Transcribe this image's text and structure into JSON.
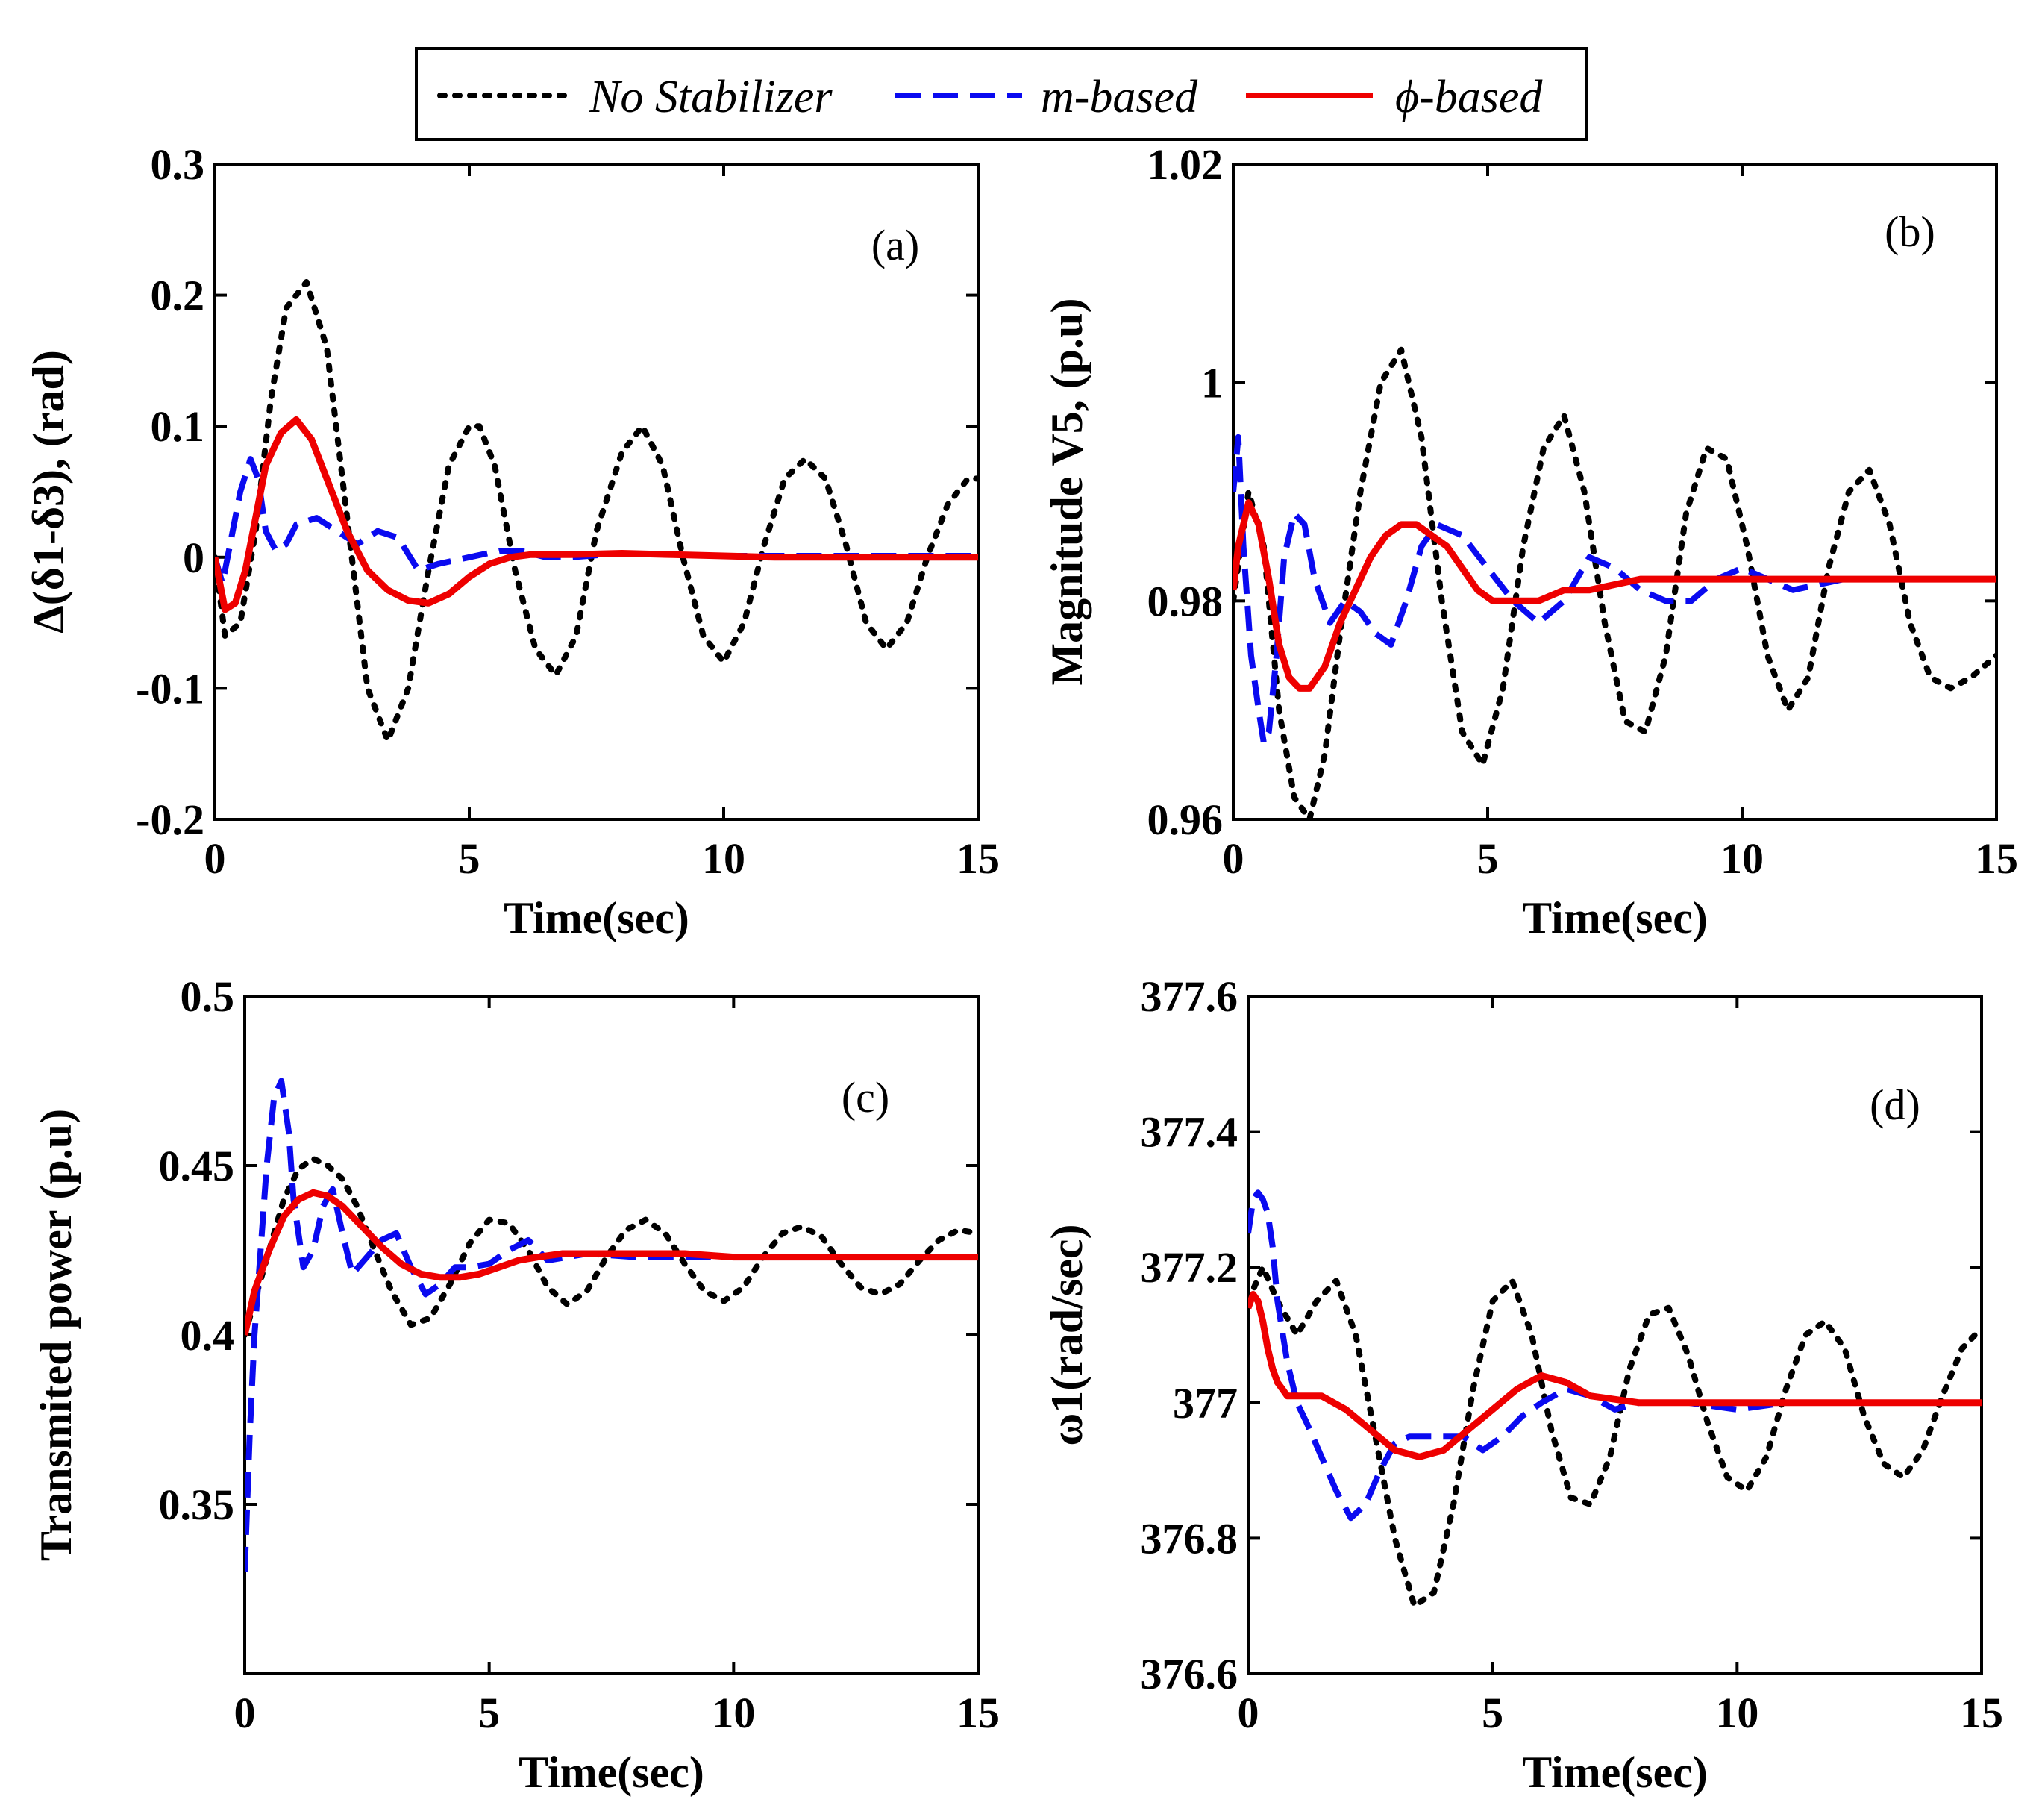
{
  "legend": {
    "entries": [
      {
        "label": "No Stabilizer",
        "color": "#000000",
        "style": "dotted"
      },
      {
        "label": "m-based",
        "color": "#0a0af0",
        "style": "dashed"
      },
      {
        "label": "ϕ-based",
        "color": "#ee0000",
        "style": "solid"
      }
    ]
  },
  "chart_data": [
    {
      "type": "line",
      "panel_label": "(a)",
      "xlabel": "Time(sec)",
      "ylabel": "Δ(δ1-δ3), (rad)",
      "xlim": [
        0,
        15
      ],
      "ylim": [
        -0.2,
        0.3
      ],
      "xticks": [
        0,
        5,
        10,
        15
      ],
      "xtick_labels": [
        "0",
        "5",
        "10",
        "15"
      ],
      "yticks": [
        -0.2,
        -0.1,
        0,
        0.1,
        0.2,
        0.3
      ],
      "ytick_labels": [
        "-0.2",
        "-0.1",
        "0",
        "0.1",
        "0.2",
        "0.3"
      ],
      "series": [
        {
          "name": "No Stabilizer",
          "x": [
            0,
            0.2,
            0.5,
            0.8,
            1.1,
            1.4,
            1.8,
            2.2,
            2.6,
            3.0,
            3.4,
            3.8,
            4.2,
            4.6,
            5.0,
            5.2,
            5.5,
            5.9,
            6.3,
            6.7,
            7.1,
            7.5,
            8.0,
            8.4,
            8.8,
            9.2,
            9.6,
            10.0,
            10.4,
            10.8,
            11.2,
            11.6,
            12.0,
            12.4,
            12.8,
            13.2,
            13.6,
            14.0,
            14.4,
            14.8,
            15.0
          ],
          "y": [
            0,
            -0.06,
            -0.05,
            0.02,
            0.12,
            0.19,
            0.21,
            0.16,
            0.03,
            -0.1,
            -0.14,
            -0.1,
            -0.01,
            0.07,
            0.1,
            0.1,
            0.07,
            -0.01,
            -0.07,
            -0.09,
            -0.06,
            0.02,
            0.08,
            0.1,
            0.07,
            0,
            -0.06,
            -0.08,
            -0.05,
            0.01,
            0.06,
            0.075,
            0.06,
            0.01,
            -0.05,
            -0.07,
            -0.05,
            0,
            0.04,
            0.06,
            0.06
          ]
        },
        {
          "name": "m-based",
          "x": [
            0,
            0.15,
            0.3,
            0.5,
            0.7,
            0.85,
            1.0,
            1.2,
            1.4,
            1.6,
            2.0,
            2.4,
            2.8,
            3.2,
            3.6,
            4.0,
            4.4,
            5.0,
            5.6,
            6.0,
            6.5,
            7.0,
            8.0,
            9.0,
            10.0,
            11.0,
            12.0,
            13.0,
            14.0,
            15.0
          ],
          "y": [
            0,
            -0.02,
            0.01,
            0.05,
            0.075,
            0.06,
            0.02,
            0.005,
            0.01,
            0.025,
            0.03,
            0.02,
            0.01,
            0.02,
            0.015,
            -0.01,
            -0.005,
            0,
            0.005,
            0.005,
            0,
            0,
            0.003,
            0.002,
            0.001,
            0.001,
            0.001,
            0.001,
            0.001,
            0.001
          ]
        },
        {
          "name": "ϕ-based",
          "x": [
            0,
            0.2,
            0.4,
            0.6,
            0.8,
            1.0,
            1.3,
            1.6,
            1.9,
            2.2,
            2.6,
            3.0,
            3.4,
            3.8,
            4.2,
            4.6,
            5.0,
            5.4,
            5.8,
            6.2,
            7.0,
            8.0,
            9.0,
            10.0,
            11.0,
            12.0,
            13.0,
            14.0,
            15.0
          ],
          "y": [
            0,
            -0.04,
            -0.035,
            -0.01,
            0.03,
            0.07,
            0.095,
            0.105,
            0.09,
            0.06,
            0.02,
            -0.01,
            -0.025,
            -0.033,
            -0.035,
            -0.028,
            -0.015,
            -0.005,
            0,
            0.002,
            0.002,
            0.003,
            0.002,
            0.001,
            0,
            0,
            0,
            0,
            0
          ]
        }
      ]
    },
    {
      "type": "line",
      "panel_label": "(b)",
      "xlabel": "Time(sec)",
      "ylabel": "Magnitude V5, (p.u)",
      "xlim": [
        0,
        15
      ],
      "ylim": [
        0.96,
        1.02
      ],
      "xticks": [
        0,
        5,
        10,
        15
      ],
      "xtick_labels": [
        "0",
        "5",
        "10",
        "15"
      ],
      "yticks": [
        0.96,
        0.98,
        1.0,
        1.02
      ],
      "ytick_labels": [
        "0.96",
        "0.98",
        "1",
        "1.02"
      ],
      "series": [
        {
          "name": "No Stabilizer",
          "x": [
            0,
            0.3,
            0.6,
            0.9,
            1.2,
            1.5,
            1.8,
            2.1,
            2.5,
            2.9,
            3.3,
            3.7,
            4.1,
            4.5,
            4.9,
            5.3,
            5.7,
            6.1,
            6.5,
            6.9,
            7.3,
            7.7,
            8.1,
            8.5,
            8.9,
            9.3,
            9.7,
            10.1,
            10.5,
            10.9,
            11.3,
            11.7,
            12.1,
            12.5,
            12.9,
            13.3,
            13.7,
            14.1,
            14.5,
            15.0
          ],
          "y": [
            0.98,
            0.99,
            0.985,
            0.97,
            0.962,
            0.96,
            0.966,
            0.977,
            0.99,
            1.0,
            1.003,
            0.995,
            0.98,
            0.968,
            0.965,
            0.972,
            0.985,
            0.994,
            0.997,
            0.99,
            0.978,
            0.969,
            0.968,
            0.975,
            0.988,
            0.994,
            0.993,
            0.985,
            0.975,
            0.97,
            0.973,
            0.983,
            0.99,
            0.992,
            0.987,
            0.978,
            0.973,
            0.972,
            0.973,
            0.975
          ]
        },
        {
          "name": "m-based",
          "x": [
            0,
            0.1,
            0.2,
            0.35,
            0.5,
            0.6,
            0.7,
            0.85,
            1.0,
            1.2,
            1.4,
            1.6,
            1.9,
            2.2,
            2.5,
            2.8,
            3.1,
            3.4,
            3.7,
            4.0,
            4.5,
            5.0,
            5.5,
            6.0,
            6.5,
            7.0,
            7.5,
            8.0,
            8.5,
            9.0,
            9.5,
            10.0,
            10.5,
            11.0,
            12.0,
            13.0,
            14.0,
            15.0
          ],
          "y": [
            0.99,
            0.995,
            0.985,
            0.975,
            0.97,
            0.967,
            0.968,
            0.975,
            0.984,
            0.988,
            0.987,
            0.982,
            0.978,
            0.98,
            0.979,
            0.977,
            0.976,
            0.98,
            0.985,
            0.987,
            0.986,
            0.983,
            0.98,
            0.978,
            0.98,
            0.984,
            0.983,
            0.981,
            0.98,
            0.98,
            0.982,
            0.983,
            0.982,
            0.981,
            0.982,
            0.982,
            0.982,
            0.982
          ]
        },
        {
          "name": "ϕ-based",
          "x": [
            0,
            0.1,
            0.3,
            0.5,
            0.7,
            0.9,
            1.1,
            1.3,
            1.5,
            1.8,
            2.1,
            2.4,
            2.7,
            3.0,
            3.3,
            3.6,
            3.9,
            4.2,
            4.5,
            4.8,
            5.1,
            5.4,
            5.7,
            6.0,
            6.5,
            7.0,
            8.0,
            9.0,
            10.0,
            11.0,
            12.0,
            13.0,
            14.0,
            15.0
          ],
          "y": [
            0.981,
            0.985,
            0.989,
            0.987,
            0.982,
            0.976,
            0.973,
            0.972,
            0.972,
            0.974,
            0.978,
            0.981,
            0.984,
            0.986,
            0.987,
            0.987,
            0.986,
            0.985,
            0.983,
            0.981,
            0.98,
            0.98,
            0.98,
            0.98,
            0.981,
            0.981,
            0.982,
            0.982,
            0.982,
            0.982,
            0.982,
            0.982,
            0.982,
            0.982
          ]
        }
      ]
    },
    {
      "type": "line",
      "panel_label": "(c)",
      "xlabel": "Time(sec)",
      "ylabel": "Transmited power (p.u)",
      "xlim": [
        0,
        15
      ],
      "ylim": [
        0.3,
        0.5
      ],
      "xticks": [
        0,
        5,
        10,
        15
      ],
      "xtick_labels": [
        "0",
        "5",
        "10",
        "15"
      ],
      "yticks": [
        0.35,
        0.4,
        0.45,
        0.5
      ],
      "ytick_labels": [
        "0.35",
        "0.4",
        "0.45",
        "0.5"
      ],
      "series": [
        {
          "name": "No Stabilizer",
          "x": [
            0,
            0.2,
            0.5,
            0.8,
            1.1,
            1.4,
            1.7,
            2.0,
            2.3,
            2.6,
            3.0,
            3.4,
            3.8,
            4.2,
            4.6,
            5.0,
            5.4,
            5.8,
            6.2,
            6.6,
            7.0,
            7.4,
            7.8,
            8.2,
            8.6,
            9.0,
            9.4,
            9.8,
            10.2,
            10.6,
            11.0,
            11.4,
            11.8,
            12.2,
            12.6,
            13.0,
            13.4,
            13.8,
            14.2,
            14.6,
            15.0
          ],
          "y": [
            0.4,
            0.41,
            0.425,
            0.44,
            0.449,
            0.452,
            0.45,
            0.446,
            0.438,
            0.427,
            0.413,
            0.403,
            0.405,
            0.415,
            0.427,
            0.434,
            0.433,
            0.425,
            0.414,
            0.409,
            0.413,
            0.423,
            0.431,
            0.434,
            0.43,
            0.421,
            0.413,
            0.41,
            0.414,
            0.423,
            0.43,
            0.432,
            0.429,
            0.421,
            0.414,
            0.412,
            0.415,
            0.422,
            0.428,
            0.431,
            0.43
          ]
        },
        {
          "name": "m-based",
          "x": [
            0,
            0.1,
            0.2,
            0.3,
            0.45,
            0.6,
            0.75,
            0.9,
            1.0,
            1.2,
            1.4,
            1.6,
            1.8,
            2.0,
            2.2,
            2.5,
            2.8,
            3.1,
            3.4,
            3.7,
            4.0,
            4.3,
            4.6,
            5.0,
            5.4,
            5.8,
            6.2,
            7.0,
            8.0,
            9.0,
            10.0,
            11.0,
            12.0,
            13.0,
            14.0,
            15.0
          ],
          "y": [
            0.33,
            0.37,
            0.4,
            0.42,
            0.45,
            0.47,
            0.475,
            0.46,
            0.44,
            0.42,
            0.425,
            0.438,
            0.443,
            0.43,
            0.418,
            0.423,
            0.428,
            0.43,
            0.42,
            0.412,
            0.415,
            0.42,
            0.42,
            0.421,
            0.425,
            0.428,
            0.422,
            0.424,
            0.423,
            0.423,
            0.423,
            0.423,
            0.423,
            0.423,
            0.423,
            0.423
          ]
        },
        {
          "name": "ϕ-based",
          "x": [
            0,
            0.2,
            0.5,
            0.8,
            1.1,
            1.4,
            1.7,
            2.0,
            2.4,
            2.8,
            3.2,
            3.6,
            4.0,
            4.4,
            4.8,
            5.2,
            5.6,
            6.0,
            6.5,
            7.0,
            8.0,
            9.0,
            10.0,
            11.0,
            12.0,
            13.0,
            14.0,
            15.0
          ],
          "y": [
            0.4,
            0.413,
            0.425,
            0.435,
            0.44,
            0.442,
            0.441,
            0.438,
            0.432,
            0.426,
            0.421,
            0.418,
            0.417,
            0.417,
            0.418,
            0.42,
            0.422,
            0.423,
            0.424,
            0.424,
            0.424,
            0.424,
            0.423,
            0.423,
            0.423,
            0.423,
            0.423,
            0.423
          ]
        }
      ]
    },
    {
      "type": "line",
      "panel_label": "(d)",
      "xlabel": "Time(sec)",
      "ylabel": "ω1(rad/sec)",
      "xlim": [
        0,
        15
      ],
      "ylim": [
        376.6,
        377.6
      ],
      "xticks": [
        0,
        5,
        10,
        15
      ],
      "xtick_labels": [
        "0",
        "5",
        "10",
        "15"
      ],
      "yticks": [
        376.6,
        376.8,
        377.0,
        377.2,
        377.4,
        377.6
      ],
      "ytick_labels": [
        "376.6",
        "376.8",
        "377",
        "377.2",
        "377.4",
        "377.6"
      ],
      "series": [
        {
          "name": "No Stabilizer",
          "x": [
            0,
            0.3,
            0.6,
            1.0,
            1.4,
            1.8,
            2.2,
            2.6,
            3.0,
            3.4,
            3.8,
            4.2,
            4.6,
            5.0,
            5.4,
            5.8,
            6.2,
            6.6,
            7.0,
            7.4,
            7.8,
            8.2,
            8.6,
            9.0,
            9.4,
            9.8,
            10.2,
            10.6,
            11.0,
            11.4,
            11.8,
            12.2,
            12.6,
            13.0,
            13.4,
            13.8,
            14.2,
            14.6,
            15.0
          ],
          "y": [
            377.15,
            377.2,
            377.15,
            377.1,
            377.15,
            377.18,
            377.1,
            376.95,
            376.8,
            376.7,
            376.72,
            376.85,
            377.02,
            377.15,
            377.18,
            377.1,
            376.96,
            376.86,
            376.85,
            376.92,
            377.05,
            377.13,
            377.14,
            377.07,
            376.97,
            376.89,
            376.87,
            376.92,
            377.02,
            377.1,
            377.12,
            377.08,
            376.98,
            376.91,
            376.89,
            376.93,
            377.01,
            377.08,
            377.11
          ]
        },
        {
          "name": "m-based",
          "x": [
            0,
            0.1,
            0.2,
            0.3,
            0.4,
            0.5,
            0.6,
            0.8,
            1.0,
            1.2,
            1.5,
            1.8,
            2.1,
            2.4,
            2.7,
            3.0,
            3.3,
            3.6,
            4.0,
            4.4,
            4.8,
            5.2,
            5.6,
            6.0,
            6.5,
            7.0,
            7.5,
            8.0,
            9.0,
            10.0,
            11.0,
            12.0,
            13.0,
            14.0,
            15.0
          ],
          "y": [
            377.25,
            377.3,
            377.31,
            377.3,
            377.28,
            377.23,
            377.15,
            377.06,
            377.0,
            376.97,
            376.92,
            376.87,
            376.83,
            376.85,
            376.9,
            376.94,
            376.95,
            376.95,
            376.95,
            376.95,
            376.93,
            376.95,
            376.98,
            377.0,
            377.02,
            377.01,
            376.99,
            377.0,
            377.0,
            376.99,
            377.0,
            377.0,
            377.0,
            377.0,
            377.0
          ]
        },
        {
          "name": "ϕ-based",
          "x": [
            0,
            0.1,
            0.2,
            0.3,
            0.4,
            0.5,
            0.6,
            0.7,
            0.8,
            1.0,
            1.5,
            2.0,
            2.5,
            3.0,
            3.5,
            4.0,
            4.5,
            5.0,
            5.5,
            6.0,
            6.5,
            7.0,
            8.0,
            9.0,
            10.0,
            11.0,
            12.0,
            13.0,
            14.0,
            15.0
          ],
          "y": [
            377.14,
            377.16,
            377.15,
            377.12,
            377.08,
            377.05,
            377.03,
            377.02,
            377.01,
            377.01,
            377.01,
            376.99,
            376.96,
            376.93,
            376.92,
            376.93,
            376.96,
            376.99,
            377.02,
            377.04,
            377.03,
            377.01,
            377.0,
            377.0,
            377.0,
            377.0,
            377.0,
            377.0,
            377.0,
            377.0
          ]
        }
      ]
    }
  ]
}
